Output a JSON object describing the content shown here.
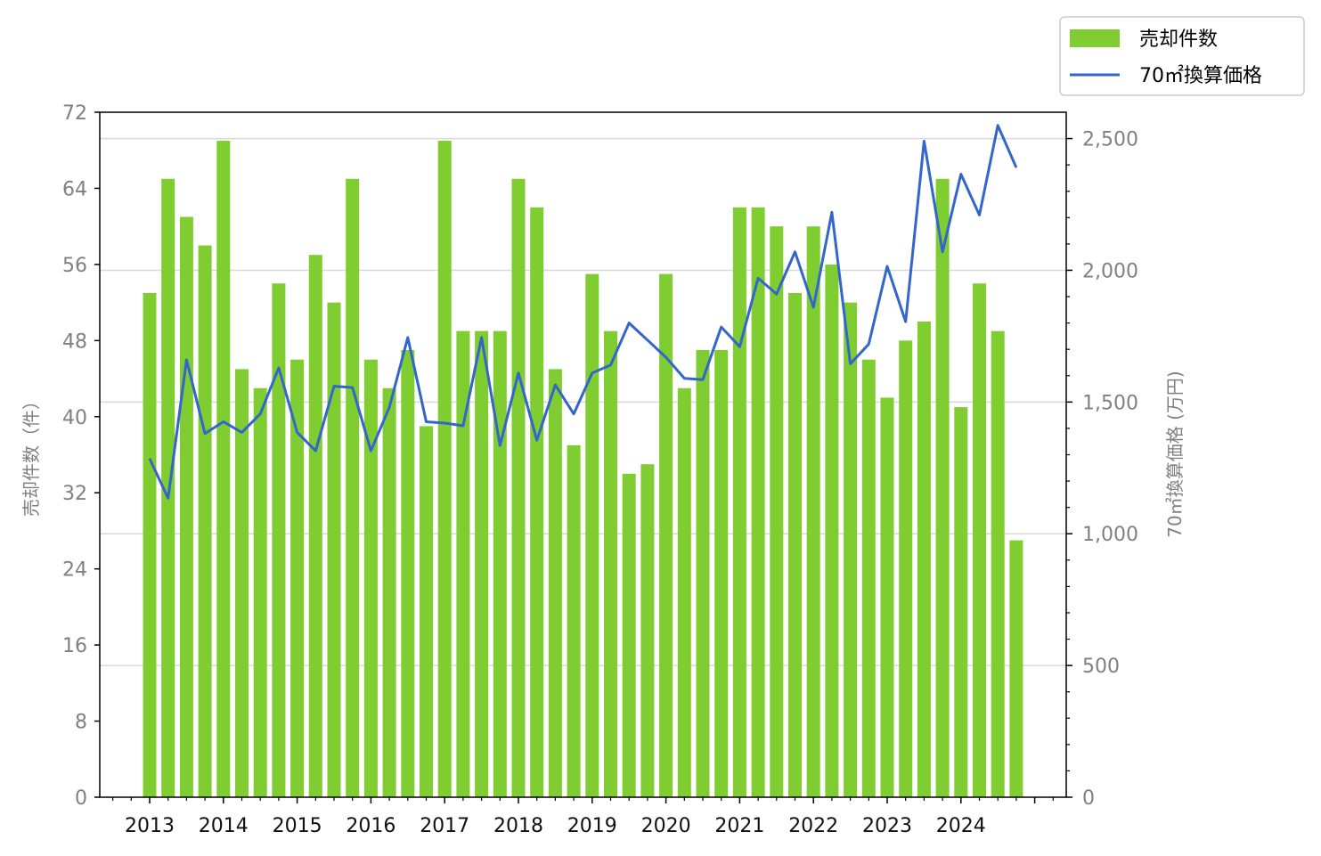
{
  "chart_data": {
    "type": "bar+line",
    "x": [
      "2013Q1",
      "2013Q2",
      "2013Q3",
      "2013Q4",
      "2014Q1",
      "2014Q2",
      "2014Q3",
      "2014Q4",
      "2015Q1",
      "2015Q2",
      "2015Q3",
      "2015Q4",
      "2016Q1",
      "2016Q2",
      "2016Q3",
      "2016Q4",
      "2017Q1",
      "2017Q2",
      "2017Q3",
      "2017Q4",
      "2018Q1",
      "2018Q2",
      "2018Q3",
      "2018Q4",
      "2019Q1",
      "2019Q2",
      "2019Q3",
      "2019Q4",
      "2020Q1",
      "2020Q2",
      "2020Q3",
      "2020Q4",
      "2021Q1",
      "2021Q2",
      "2021Q3",
      "2021Q4",
      "2022Q1",
      "2022Q2",
      "2022Q3",
      "2022Q4",
      "2023Q1",
      "2023Q2",
      "2023Q3",
      "2023Q4",
      "2024Q1",
      "2024Q2",
      "2024Q3",
      "2024Q4"
    ],
    "year_labels": [
      "2013",
      "2014",
      "2015",
      "2016",
      "2017",
      "2018",
      "2019",
      "2020",
      "2021",
      "2022",
      "2023",
      "2024"
    ],
    "series": [
      {
        "name": "売却件数",
        "type": "bar",
        "axis": "left",
        "color": "#7fcd31",
        "values": [
          53,
          65,
          61,
          58,
          69,
          45,
          43,
          54,
          46,
          57,
          52,
          65,
          46,
          43,
          47,
          39,
          69,
          49,
          49,
          49,
          65,
          62,
          45,
          37,
          55,
          49,
          34,
          35,
          55,
          43,
          47,
          47,
          62,
          62,
          60,
          53,
          60,
          56,
          52,
          46,
          42,
          48,
          50,
          65,
          41,
          54,
          49,
          27
        ]
      },
      {
        "name": "70㎡換算価格",
        "type": "line",
        "axis": "right",
        "color": "#3366cc",
        "values": [
          1285,
          1135,
          1660,
          1380,
          1425,
          1385,
          1455,
          1630,
          1385,
          1315,
          1560,
          1555,
          1315,
          1480,
          1745,
          1425,
          1420,
          1410,
          1745,
          1335,
          1610,
          1355,
          1565,
          1455,
          1610,
          1640,
          1800,
          1735,
          1670,
          1590,
          1585,
          1785,
          1710,
          1970,
          1910,
          2070,
          1860,
          2220,
          1645,
          1720,
          2015,
          1805,
          2490,
          2070,
          2365,
          2210,
          2550,
          2390
        ]
      }
    ],
    "left_axis": {
      "label": "売却件数（件）",
      "ylim": [
        0,
        72
      ],
      "ticks": [
        "0",
        "8",
        "16",
        "24",
        "32",
        "40",
        "48",
        "56",
        "64",
        "72"
      ]
    },
    "right_axis": {
      "label": "70㎡換算価格 (万円)",
      "ylim": [
        0,
        2600
      ],
      "ticks": [
        "0",
        "500",
        "1,000",
        "1,500",
        "2,000",
        "2,500"
      ]
    },
    "legend": {
      "placement": "top-right",
      "entries": [
        "売却件数",
        "70㎡換算価格"
      ]
    },
    "grid": "horizontal (right axis)"
  }
}
